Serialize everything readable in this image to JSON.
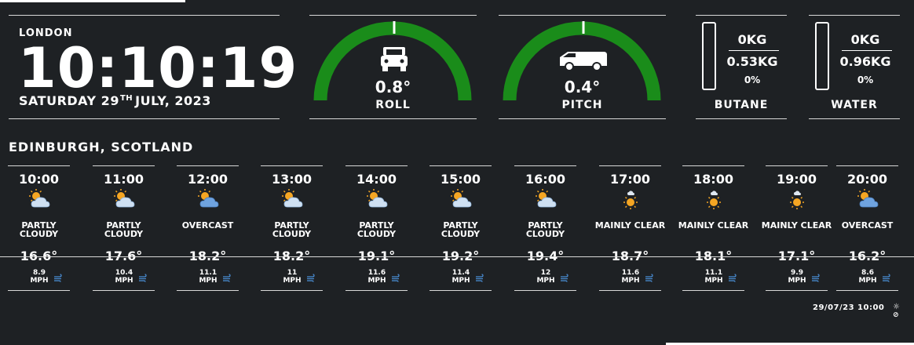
{
  "clock": {
    "city": "LONDON",
    "time": "10:10:19",
    "date_day": "SATURDAY 29",
    "date_suffix": "TH",
    "date_rest": "JULY, 2023"
  },
  "level": {
    "roll": {
      "value": "0.8°",
      "label": "ROLL",
      "icon": "car-front-icon"
    },
    "pitch": {
      "value": "0.4°",
      "label": "PITCH",
      "icon": "van-side-icon"
    },
    "gauge_color": "#1a8c1a",
    "marker_color": "#ffffff"
  },
  "tanks": {
    "butane": {
      "current": "0KG",
      "capacity": "0.53KG",
      "percent": "0%",
      "fill_fraction": 0,
      "label": "BUTANE"
    },
    "water": {
      "current": "0KG",
      "capacity": "0.96KG",
      "percent": "0%",
      "fill_fraction": 0,
      "label": "WATER"
    }
  },
  "weather": {
    "location": "EDINBURGH, SCOTLAND",
    "hours": [
      {
        "time": "10:00",
        "icon": "partly-cloudy-icon",
        "condition": "PARTLY CLOUDY",
        "temp": "16.6°",
        "wind": "8.9",
        "unit": "MPH"
      },
      {
        "time": "11:00",
        "icon": "partly-cloudy-icon",
        "condition": "PARTLY CLOUDY",
        "temp": "17.6°",
        "wind": "10.4",
        "unit": "MPH"
      },
      {
        "time": "12:00",
        "icon": "overcast-icon",
        "condition": "OVERCAST",
        "temp": "18.2°",
        "wind": "11.1",
        "unit": "MPH"
      },
      {
        "time": "13:00",
        "icon": "partly-cloudy-icon",
        "condition": "PARTLY CLOUDY",
        "temp": "18.2°",
        "wind": "11",
        "unit": "MPH"
      },
      {
        "time": "14:00",
        "icon": "partly-cloudy-icon",
        "condition": "PARTLY CLOUDY",
        "temp": "19.1°",
        "wind": "11.6",
        "unit": "MPH"
      },
      {
        "time": "15:00",
        "icon": "partly-cloudy-icon",
        "condition": "PARTLY CLOUDY",
        "temp": "19.2°",
        "wind": "11.4",
        "unit": "MPH"
      },
      {
        "time": "16:00",
        "icon": "partly-cloudy-icon",
        "condition": "PARTLY CLOUDY",
        "temp": "19.4°",
        "wind": "12",
        "unit": "MPH"
      },
      {
        "time": "17:00",
        "icon": "mainly-clear-icon",
        "condition": "MAINLY CLEAR",
        "temp": "18.7°",
        "wind": "11.6",
        "unit": "MPH"
      },
      {
        "time": "18:00",
        "icon": "mainly-clear-icon",
        "condition": "MAINLY CLEAR",
        "temp": "18.1°",
        "wind": "11.1",
        "unit": "MPH"
      },
      {
        "time": "19:00",
        "icon": "mainly-clear-icon",
        "condition": "MAINLY CLEAR",
        "temp": "17.1°",
        "wind": "9.9",
        "unit": "MPH"
      },
      {
        "time": "20:00",
        "icon": "overcast-icon",
        "condition": "OVERCAST",
        "temp": "16.2°",
        "wind": "8.6",
        "unit": "MPH"
      }
    ],
    "updated": "29/07/23 10:00",
    "wind_icon_color": "#4a8fd8"
  }
}
